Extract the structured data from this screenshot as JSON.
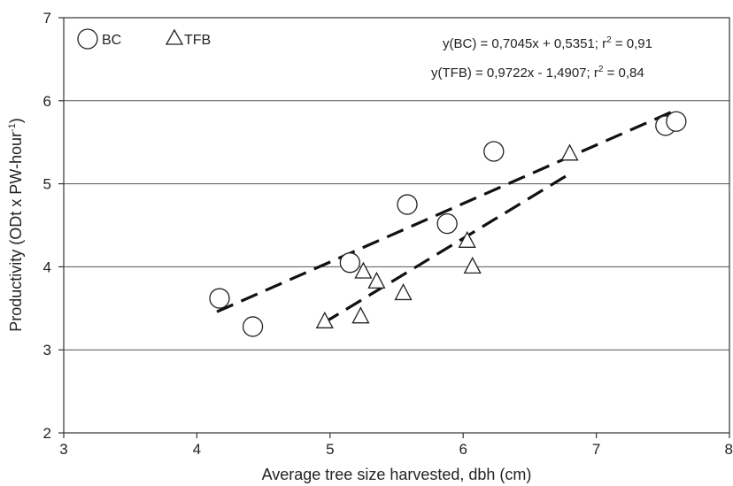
{
  "chart_data": {
    "type": "scatter",
    "xlabel": "Average tree size harvested, dbh (cm)",
    "ylabel": "Productivity (ODt x PW-hour",
    "ylabel_sup": "-1",
    "ylabel_close": ")",
    "xlim": [
      3,
      8
    ],
    "ylim": [
      2,
      7
    ],
    "xticks": [
      "3",
      "4",
      "5",
      "6",
      "7",
      "8"
    ],
    "yticks": [
      "2",
      "3",
      "4",
      "5",
      "6",
      "7"
    ],
    "grid": "horizontal",
    "legend_position": "top-left",
    "series": [
      {
        "name": "BC",
        "marker": "circle",
        "points": [
          {
            "x": 4.17,
            "y": 3.62
          },
          {
            "x": 4.42,
            "y": 3.28
          },
          {
            "x": 5.15,
            "y": 4.05
          },
          {
            "x": 5.58,
            "y": 4.75
          },
          {
            "x": 5.88,
            "y": 4.52
          },
          {
            "x": 6.23,
            "y": 5.39
          },
          {
            "x": 7.52,
            "y": 5.7
          },
          {
            "x": 7.6,
            "y": 5.75
          }
        ],
        "fit": {
          "slope": 0.7045,
          "intercept": 0.5351,
          "x_range": [
            4.15,
            7.6
          ]
        }
      },
      {
        "name": "TFB",
        "marker": "triangle",
        "points": [
          {
            "x": 4.96,
            "y": 3.34
          },
          {
            "x": 5.23,
            "y": 3.4
          },
          {
            "x": 5.25,
            "y": 3.94
          },
          {
            "x": 5.35,
            "y": 3.82
          },
          {
            "x": 5.55,
            "y": 3.68
          },
          {
            "x": 6.03,
            "y": 4.31
          },
          {
            "x": 6.07,
            "y": 4.0
          },
          {
            "x": 6.8,
            "y": 5.36
          }
        ],
        "fit": {
          "slope": 0.9722,
          "intercept": -1.4907,
          "x_range": [
            4.95,
            6.8
          ]
        }
      }
    ],
    "annotations": [
      {
        "text_pre": "y(BC) = 0,7045x + 0,5351; r",
        "sup": "2",
        "text_post": " = 0,91"
      },
      {
        "text_pre": "y(TFB) = 0,9722x - 1,4907; r",
        "sup": "2",
        "text_post": " = 0,84"
      }
    ]
  }
}
